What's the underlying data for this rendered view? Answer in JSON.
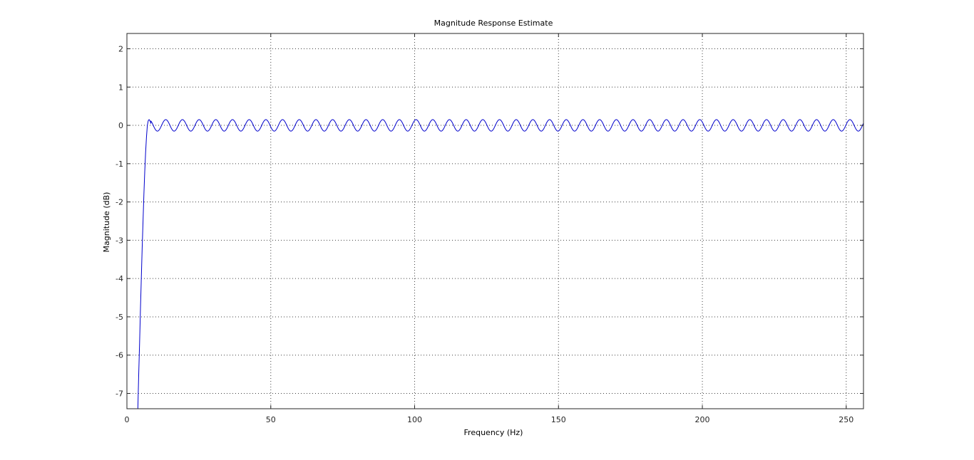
{
  "chart_data": {
    "type": "line",
    "title": "Magnitude Response Estimate",
    "xlabel": "Frequency (Hz)",
    "ylabel": "Magnitude (dB)",
    "xlim": [
      0,
      256
    ],
    "ylim": [
      -7.4,
      2.4
    ],
    "xticks": [
      0,
      50,
      100,
      150,
      200,
      250
    ],
    "yticks": [
      2,
      1,
      0,
      -1,
      -2,
      -3,
      -4,
      -5,
      -6,
      -7
    ],
    "grid": true,
    "grid_style": "dotted",
    "series": [
      {
        "color": "#0000cc",
        "x": [
          3.8,
          4.1,
          4.4,
          4.7,
          5.0,
          5.3,
          5.6,
          5.9,
          6.2,
          6.5,
          6.8,
          7.1,
          7.4,
          7.7,
          8.0,
          8.3
        ],
        "y": [
          -7.4,
          -6.5,
          -5.7,
          -4.8,
          -4.0,
          -3.2,
          -2.5,
          -1.8,
          -1.2,
          -0.7,
          -0.3,
          0.0,
          0.12,
          0.15,
          0.12,
          0.06
        ],
        "ripple": {
          "x_start": 8.0,
          "x_end": 256,
          "period": 5.8,
          "amplitude": 0.15,
          "center": 0
        }
      }
    ]
  }
}
